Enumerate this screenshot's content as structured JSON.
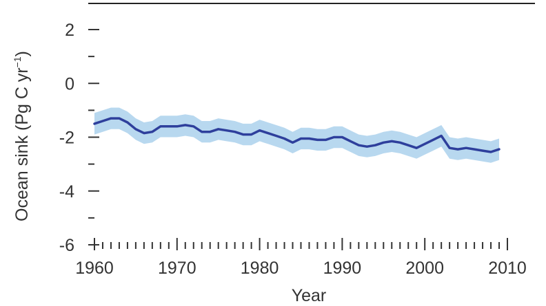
{
  "chart_data": {
    "type": "line",
    "title": "",
    "xlabel": "Year",
    "ylabel": "Ocean sink (Pg C yr⁻¹)",
    "ylabel_parts": {
      "main": "Ocean sink (Pg C yr",
      "superscript": "−1",
      "close": ")"
    },
    "xlim": [
      1960,
      2010
    ],
    "ylim": [
      -6,
      2
    ],
    "x_ticks": [
      1960,
      1970,
      1980,
      1990,
      2000,
      2010
    ],
    "x_tick_labels": [
      "1960",
      "1970",
      "1980",
      "1990",
      "2000",
      "2010"
    ],
    "y_ticks": [
      2,
      0,
      -2,
      -4,
      -6
    ],
    "y_tick_labels": [
      "2",
      "0",
      "-2",
      "-4",
      "-6"
    ],
    "grid": false,
    "series": [
      {
        "values_x": [
          1960,
          1961,
          1962,
          1963,
          1964,
          1965,
          1966,
          1967,
          1968,
          1969,
          1970,
          1971,
          1972,
          1973,
          1974,
          1975,
          1976,
          1977,
          1978,
          1979,
          1980,
          1981,
          1982,
          1983,
          1984,
          1985,
          1986,
          1987,
          1988,
          1989,
          1990,
          1991,
          1992,
          1993,
          1994,
          1995,
          1996,
          1997,
          1998,
          1999,
          2000,
          2001,
          2002,
          2003,
          2004,
          2005,
          2006,
          2007,
          2008,
          2009
        ],
        "values_y": [
          -1.5,
          -1.4,
          -1.3,
          -1.3,
          -1.45,
          -1.7,
          -1.85,
          -1.8,
          -1.6,
          -1.6,
          -1.6,
          -1.55,
          -1.6,
          -1.8,
          -1.8,
          -1.7,
          -1.75,
          -1.8,
          -1.9,
          -1.9,
          -1.75,
          -1.85,
          -1.95,
          -2.05,
          -2.2,
          -2.05,
          -2.05,
          -2.1,
          -2.1,
          -2.0,
          -2.0,
          -2.15,
          -2.3,
          -2.35,
          -2.3,
          -2.2,
          -2.15,
          -2.2,
          -2.3,
          -2.4,
          -2.25,
          -2.1,
          -1.95,
          -2.4,
          -2.45,
          -2.4,
          -2.45,
          -2.5,
          -2.55,
          -2.45
        ],
        "uncertainty": 0.4,
        "line_color": "#2e3f9c",
        "band_color": "#b8d8ef"
      }
    ],
    "colors": {
      "axis": "#333333",
      "top_border": "#222222"
    }
  }
}
